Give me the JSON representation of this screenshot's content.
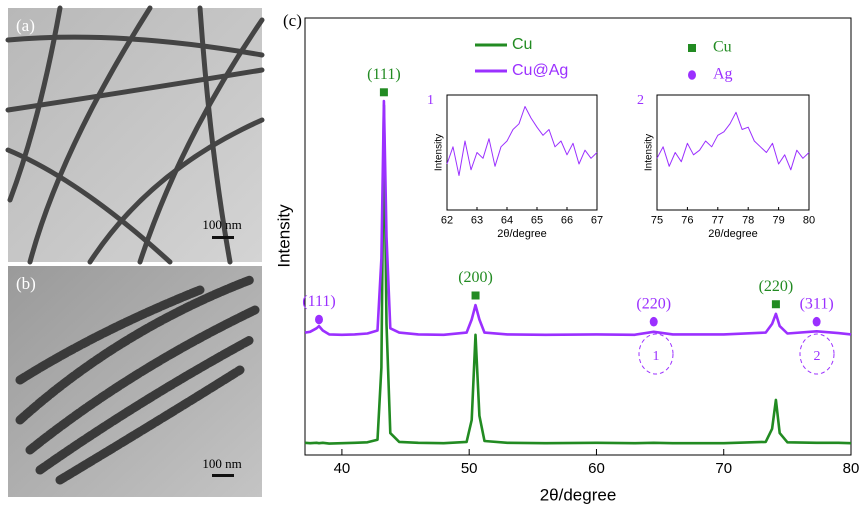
{
  "panels": [
    {
      "label": "(a)",
      "scale_bar": "100 nm"
    },
    {
      "label": "(b)",
      "scale_bar": "100 nm"
    }
  ],
  "chart_data": [
    {
      "type": "line",
      "label": "(c)",
      "x_label": "2θ/degree",
      "y_label": "Intensity",
      "xlim": [
        37.1,
        80
      ],
      "ylim": [
        0,
        100
      ],
      "xticks": [
        40,
        50,
        60,
        70,
        80
      ],
      "x": [
        37.1,
        37.5,
        38,
        38.2,
        38.5,
        39,
        40,
        41,
        42,
        42.8,
        43.1,
        43.3,
        43.5,
        43.8,
        44.5,
        46,
        48,
        49.8,
        50.2,
        50.5,
        50.8,
        51.2,
        53,
        56,
        60,
        63,
        64.5,
        66,
        70,
        73.3,
        73.8,
        74.1,
        74.4,
        75,
        77.3,
        79,
        80
      ],
      "series": [
        {
          "name": "Cu",
          "color": "#228b22",
          "values": [
            2.8,
            2.7,
            2.8,
            2.7,
            2.8,
            2.6,
            2.7,
            2.8,
            2.9,
            3.5,
            20,
            80,
            30,
            5,
            3,
            2.8,
            2.7,
            3,
            8,
            27.5,
            9,
            3.2,
            2.8,
            2.7,
            2.8,
            2.7,
            2.8,
            2.7,
            2.7,
            3,
            6,
            12.6,
            5,
            2.9,
            2.8,
            2.8,
            2.7
          ]
        },
        {
          "name": "Cu@Ag",
          "color": "#9b30ff",
          "values": [
            28,
            28.2,
            29,
            29.5,
            28.5,
            27.6,
            27.5,
            27.6,
            27.8,
            28.5,
            45,
            81,
            50,
            29,
            28,
            27.6,
            27.5,
            28,
            31,
            34.3,
            31,
            28,
            27.6,
            27.5,
            27.6,
            27.5,
            28.2,
            27.6,
            27.6,
            28,
            30,
            32.3,
            29.5,
            27.8,
            28.3,
            27.9,
            27.6
          ]
        }
      ],
      "markers": [
        {
          "name": "Cu",
          "color": "#228b22",
          "shape": "square"
        },
        {
          "name": "Ag",
          "color": "#9b30ff",
          "shape": "circle"
        }
      ],
      "annotations": [
        {
          "text": "(111)",
          "x": 43.3,
          "y": 83,
          "marker": 0
        },
        {
          "text": "(200)",
          "x": 50.5,
          "y": 36.5,
          "marker": 0
        },
        {
          "text": "(220)",
          "x": 74.1,
          "y": 34.5,
          "marker": 0
        },
        {
          "text": "(111)",
          "x": 38.2,
          "y": 31,
          "marker": 1
        },
        {
          "text": "(220)",
          "x": 64.5,
          "y": 30.5,
          "marker": 1
        },
        {
          "text": "(311)",
          "x": 77.3,
          "y": 30.5,
          "marker": 1
        }
      ]
    },
    {
      "type": "line",
      "label": "1",
      "x_label": "2θ/degree",
      "y_label": "Intensity",
      "color": "#9b30ff",
      "xlim": [
        62,
        67
      ],
      "ylim": [
        0,
        100
      ],
      "xticks": [
        62,
        63,
        64,
        65,
        66,
        67
      ],
      "x": [
        62,
        62.2,
        62.4,
        62.6,
        62.8,
        63,
        63.2,
        63.4,
        63.6,
        63.8,
        64,
        64.2,
        64.4,
        64.6,
        64.8,
        65,
        65.2,
        65.4,
        65.6,
        65.8,
        66,
        66.2,
        66.4,
        66.6,
        66.8,
        67
      ],
      "values": [
        40,
        55,
        30,
        60,
        35,
        50,
        45,
        62,
        38,
        55,
        60,
        70,
        75,
        90,
        80,
        72,
        65,
        70,
        55,
        60,
        48,
        58,
        40,
        52,
        45,
        50
      ]
    },
    {
      "type": "line",
      "label": "2",
      "x_label": "2θ/degree",
      "y_label": "Intensity",
      "color": "#9b30ff",
      "xlim": [
        75,
        80
      ],
      "ylim": [
        0,
        100
      ],
      "xticks": [
        75,
        76,
        77,
        78,
        79,
        80
      ],
      "x": [
        75,
        75.2,
        75.4,
        75.6,
        75.8,
        76,
        76.2,
        76.4,
        76.6,
        76.8,
        77,
        77.2,
        77.4,
        77.6,
        77.8,
        78,
        78.2,
        78.4,
        78.6,
        78.8,
        79,
        79.2,
        79.4,
        79.6,
        79.8,
        80
      ],
      "values": [
        45,
        55,
        38,
        50,
        42,
        58,
        48,
        52,
        60,
        55,
        65,
        68,
        75,
        85,
        70,
        72,
        60,
        55,
        50,
        58,
        40,
        48,
        35,
        52,
        45,
        50
      ]
    }
  ]
}
